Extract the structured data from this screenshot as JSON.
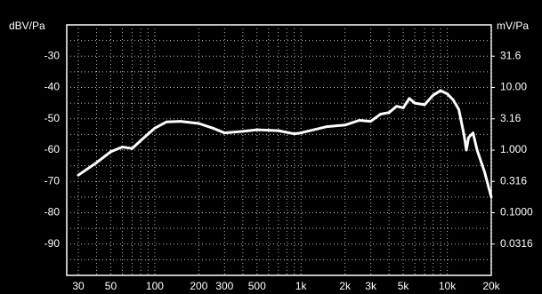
{
  "chart_data": {
    "type": "line",
    "ylabel": "dBV/Pa",
    "y2label": "mV/Pa",
    "xscale": "log",
    "y2scale": "log",
    "grid": true,
    "xlim": [
      25,
      20000
    ],
    "xticks": [
      30,
      50,
      100,
      200,
      300,
      500,
      {
        "value": 1000,
        "label": "1k"
      },
      {
        "value": 2000,
        "label": "2k"
      },
      {
        "value": 3000,
        "label": "3k"
      },
      {
        "value": 5000,
        "label": "5k"
      },
      {
        "value": 10000,
        "label": "10k"
      },
      {
        "value": 20000,
        "label": "20k"
      }
    ],
    "xminor": [
      40,
      60,
      70,
      80,
      90,
      400,
      600,
      700,
      800,
      900,
      4000,
      6000,
      7000,
      8000,
      9000
    ],
    "ylim": [
      -100,
      -20
    ],
    "yticks": [
      -30,
      -40,
      -50,
      -60,
      -70,
      -80,
      -90
    ],
    "yminor": [
      -25,
      -35,
      -45,
      -55,
      -65,
      -75,
      -85,
      -95
    ],
    "y2lim": [
      0.01,
      100
    ],
    "y2ticks": [
      31.6,
      {
        "value": 10,
        "label": "10.00"
      },
      3.16,
      {
        "value": 1,
        "label": "1.000"
      },
      0.316,
      {
        "value": 0.1,
        "label": "0.1000"
      },
      0.0316
    ],
    "x": [
      30,
      40,
      50,
      60,
      70,
      80,
      100,
      120,
      150,
      200,
      250,
      300,
      400,
      500,
      700,
      900,
      1000,
      1500,
      2000,
      2500,
      3000,
      3500,
      4000,
      4500,
      5000,
      5500,
      6000,
      7000,
      8000,
      9000,
      10000,
      11000,
      12000,
      13000,
      13500,
      14000,
      15000,
      16000,
      18000,
      20000
    ],
    "series": [
      {
        "color": "#ffffff",
        "values": [
          -68,
          -64,
          -60.5,
          -59,
          -59.5,
          -57,
          -53,
          -51,
          -50.8,
          -51.5,
          -53,
          -54.5,
          -54,
          -53.5,
          -53.8,
          -54.8,
          -54.5,
          -52.5,
          -52,
          -50.5,
          -50.8,
          -48.5,
          -48,
          -46,
          -46.5,
          -43.5,
          -45,
          -45.5,
          -42.5,
          -41,
          -42,
          -44,
          -47,
          -55,
          -60,
          -56,
          -54.5,
          -60,
          -67,
          -75
        ]
      }
    ]
  }
}
